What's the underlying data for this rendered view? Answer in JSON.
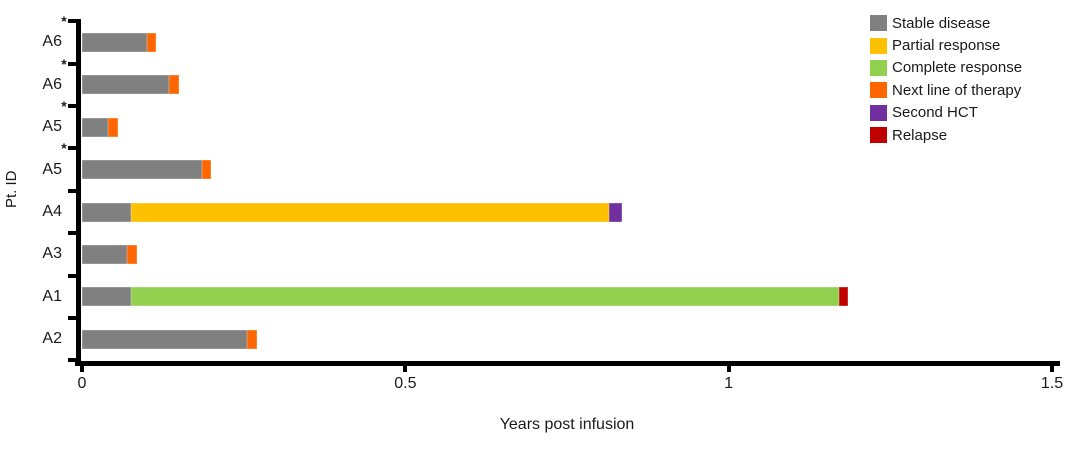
{
  "chart_data": {
    "type": "stacked_bar_horizontal",
    "title": "",
    "xlabel": "Years post infusion",
    "ylabel": "Pt. ID",
    "xlim": [
      0,
      1.5
    ],
    "grid": false,
    "legend_position": "top-right",
    "asterisk_symbol": "*",
    "x_ticks": [
      {
        "value": 0,
        "label": "0"
      },
      {
        "value": 0.5,
        "label": "0.5"
      },
      {
        "value": 1,
        "label": "1"
      },
      {
        "value": 1.5,
        "label": "1.5"
      }
    ],
    "palette": {
      "stable": "#808080",
      "partial": "#FFC000",
      "complete": "#92D050",
      "next": "#FF6600",
      "second_hct": "#7030A0",
      "relapse": "#C00000"
    },
    "legend": [
      {
        "key": "stable",
        "label": "Stable disease"
      },
      {
        "key": "partial",
        "label": "Partial response"
      },
      {
        "key": "complete",
        "label": "Complete response"
      },
      {
        "key": "next",
        "label": "Next line of therapy"
      },
      {
        "key": "second_hct",
        "label": "Second HCT"
      },
      {
        "key": "relapse",
        "label": "Relapse"
      }
    ],
    "rows": [
      {
        "id": "A6",
        "asterisk": true,
        "segments": [
          {
            "key": "stable",
            "start": 0,
            "end": 0.1
          },
          {
            "key": "next",
            "start": 0.1,
            "end": 0.115
          }
        ]
      },
      {
        "id": "A6",
        "asterisk": true,
        "segments": [
          {
            "key": "stable",
            "start": 0,
            "end": 0.135
          },
          {
            "key": "next",
            "start": 0.135,
            "end": 0.15
          }
        ]
      },
      {
        "id": "A5",
        "asterisk": true,
        "segments": [
          {
            "key": "stable",
            "start": 0,
            "end": 0.04
          },
          {
            "key": "next",
            "start": 0.04,
            "end": 0.055
          }
        ]
      },
      {
        "id": "A5",
        "asterisk": true,
        "segments": [
          {
            "key": "stable",
            "start": 0,
            "end": 0.185
          },
          {
            "key": "next",
            "start": 0.185,
            "end": 0.2
          }
        ]
      },
      {
        "id": "A4",
        "asterisk": false,
        "segments": [
          {
            "key": "stable",
            "start": 0,
            "end": 0.075
          },
          {
            "key": "partial",
            "start": 0.075,
            "end": 0.815
          },
          {
            "key": "second_hct",
            "start": 0.815,
            "end": 0.835
          }
        ]
      },
      {
        "id": "A3",
        "asterisk": false,
        "segments": [
          {
            "key": "stable",
            "start": 0,
            "end": 0.07
          },
          {
            "key": "next",
            "start": 0.07,
            "end": 0.085
          }
        ]
      },
      {
        "id": "A1",
        "asterisk": false,
        "segments": [
          {
            "key": "stable",
            "start": 0,
            "end": 0.075
          },
          {
            "key": "complete",
            "start": 0.075,
            "end": 1.17
          },
          {
            "key": "relapse",
            "start": 1.17,
            "end": 1.185
          }
        ]
      },
      {
        "id": "A2",
        "asterisk": false,
        "segments": [
          {
            "key": "stable",
            "start": 0,
            "end": 0.255
          },
          {
            "key": "next",
            "start": 0.255,
            "end": 0.27
          }
        ]
      }
    ]
  },
  "colors": {
    "axis": "#000000",
    "text": "#1a1a1a",
    "background": "#ffffff"
  }
}
